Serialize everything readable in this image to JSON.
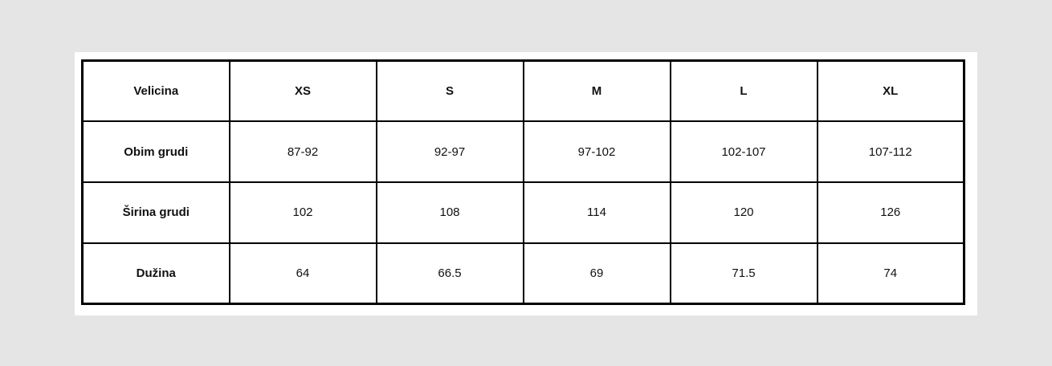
{
  "table": {
    "header": [
      "Velicina",
      "XS",
      "S",
      "M",
      "L",
      "XL"
    ],
    "rows": [
      [
        "Obim grudi",
        "87-92",
        "92-97",
        "97-102",
        "102-107",
        "107-112"
      ],
      [
        "Širina grudi",
        "102",
        "108",
        "114",
        "120",
        "126"
      ],
      [
        "Dužina",
        "64",
        "66.5",
        "69",
        "71.5",
        "74"
      ]
    ]
  }
}
